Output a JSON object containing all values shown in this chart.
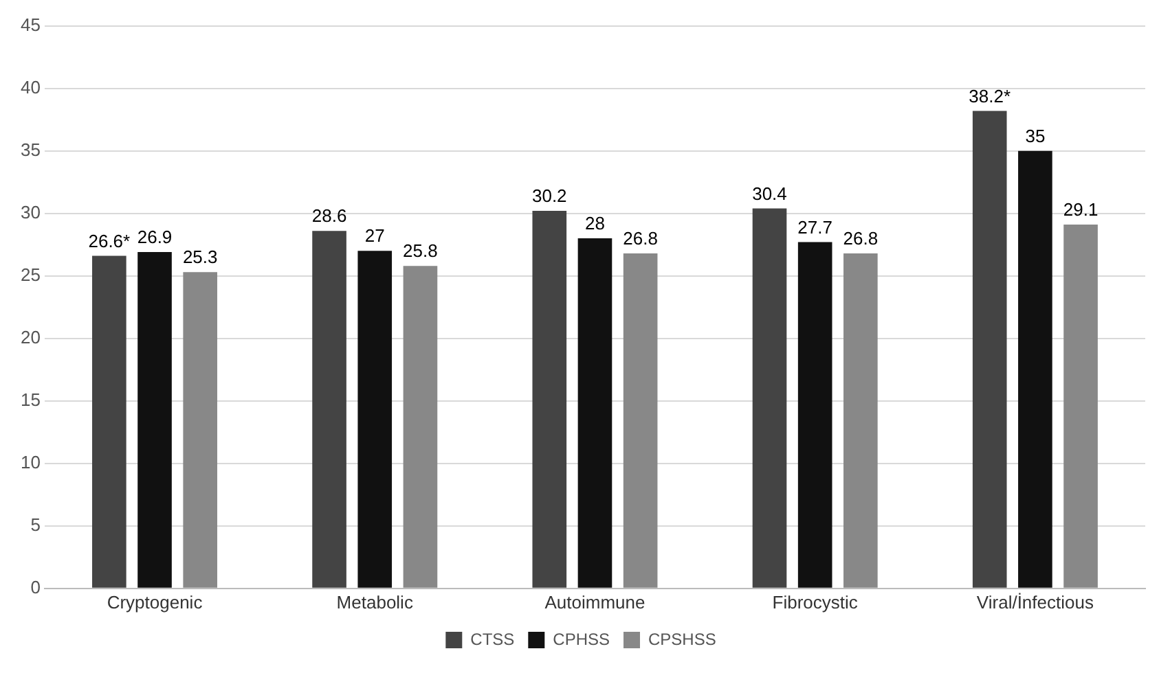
{
  "chart_data": {
    "type": "bar",
    "categories": [
      "Cryptogenic",
      "Metabolic",
      "Autoimmune",
      "Fibrocystic",
      "Viral/İnfectious"
    ],
    "series": [
      {
        "name": "CTSS",
        "color": "#444444",
        "values": [
          26.6,
          28.6,
          30.2,
          30.4,
          38.2
        ],
        "value_labels": [
          "26.6*",
          "28.6",
          "30.2",
          "30.4",
          "38.2*"
        ]
      },
      {
        "name": "CPHSS",
        "color": "#111111",
        "values": [
          26.9,
          27,
          28,
          27.7,
          35
        ],
        "value_labels": [
          "26.9",
          "27",
          "28",
          "27.7",
          "35"
        ]
      },
      {
        "name": "CPSHSS",
        "color": "#888888",
        "values": [
          25.3,
          25.8,
          26.8,
          26.8,
          29.1
        ],
        "value_labels": [
          "25.3",
          "25.8",
          "26.8",
          "26.8",
          "29.1"
        ]
      }
    ],
    "ylim": [
      0,
      45
    ],
    "yticks": [
      0,
      5,
      10,
      15,
      20,
      25,
      30,
      35,
      40,
      45
    ],
    "grid": "y",
    "legend": "bottom"
  }
}
